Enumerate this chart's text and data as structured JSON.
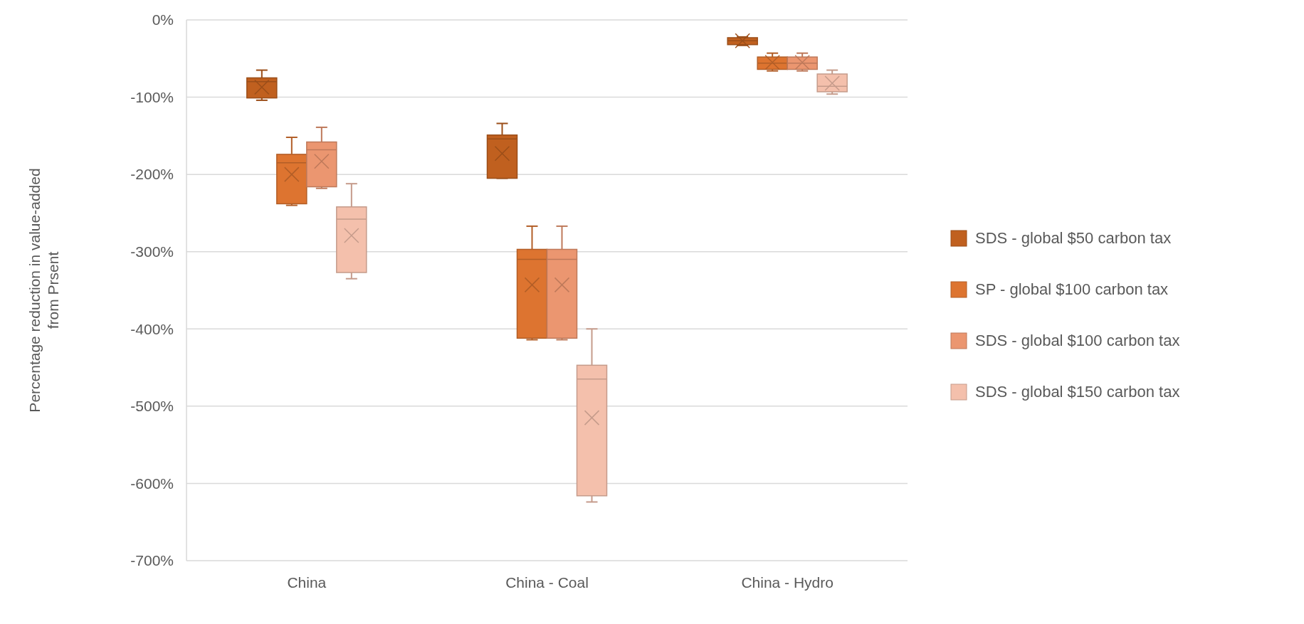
{
  "chart_data": {
    "type": "box",
    "ylabel": "Percentage reduction in value-added from Prsent",
    "categories": [
      "China",
      "China - Coal",
      "China - Hydro"
    ],
    "ylim": [
      -700,
      0
    ],
    "yticks": [
      {
        "value": -700,
        "label": "-700%"
      },
      {
        "value": -600,
        "label": "-600%"
      },
      {
        "value": -500,
        "label": "-500%"
      },
      {
        "value": -400,
        "label": "-400%"
      },
      {
        "value": -300,
        "label": "-300%"
      },
      {
        "value": -200,
        "label": "-200%"
      },
      {
        "value": -100,
        "label": "-100%"
      },
      {
        "value": 0,
        "label": "0%"
      }
    ],
    "grid": "y",
    "legend": "right",
    "marker": "cross",
    "series": [
      {
        "name": "SDS - global $50 carbon tax",
        "color": "#c0601f",
        "boxes": [
          {
            "low": -104,
            "q1": -101,
            "median": -80,
            "q3": -75,
            "high": -65,
            "mean": -87
          },
          {
            "low": -205,
            "q1": -205,
            "median": -154,
            "q3": -149,
            "high": -134,
            "mean": -173
          },
          {
            "low": -33,
            "q1": -32,
            "median": -27,
            "q3": -23,
            "high": -22,
            "mean": -27
          }
        ]
      },
      {
        "name": "SP - global $100 carbon tax",
        "color": "#dd7430",
        "boxes": [
          {
            "low": -240,
            "q1": -238,
            "median": -185,
            "q3": -174,
            "high": -152,
            "mean": -200
          },
          {
            "low": -414,
            "q1": -412,
            "median": -310,
            "q3": -297,
            "high": -267,
            "mean": -343
          },
          {
            "low": -66,
            "q1": -64,
            "median": -56,
            "q3": -48,
            "high": -43,
            "mean": -55
          }
        ]
      },
      {
        "name": "SDS - global $100 carbon tax",
        "color": "#eb9670",
        "boxes": [
          {
            "low": -218,
            "q1": -216,
            "median": -168,
            "q3": -158,
            "high": -139,
            "mean": -183
          },
          {
            "low": -414,
            "q1": -412,
            "median": -310,
            "q3": -297,
            "high": -267,
            "mean": -343
          },
          {
            "low": -66,
            "q1": -64,
            "median": -56,
            "q3": -48,
            "high": -43,
            "mean": -55
          }
        ]
      },
      {
        "name": "SDS - global $150 carbon tax",
        "color": "#f4c0ac",
        "boxes": [
          {
            "low": -335,
            "q1": -327,
            "median": -258,
            "q3": -242,
            "high": -212,
            "mean": -279
          },
          {
            "low": -624,
            "q1": -616,
            "median": -465,
            "q3": -447,
            "high": -400,
            "mean": -515
          },
          {
            "low": -96,
            "q1": -93,
            "median": -86,
            "q3": -70,
            "high": -65,
            "mean": -82
          }
        ]
      }
    ]
  }
}
